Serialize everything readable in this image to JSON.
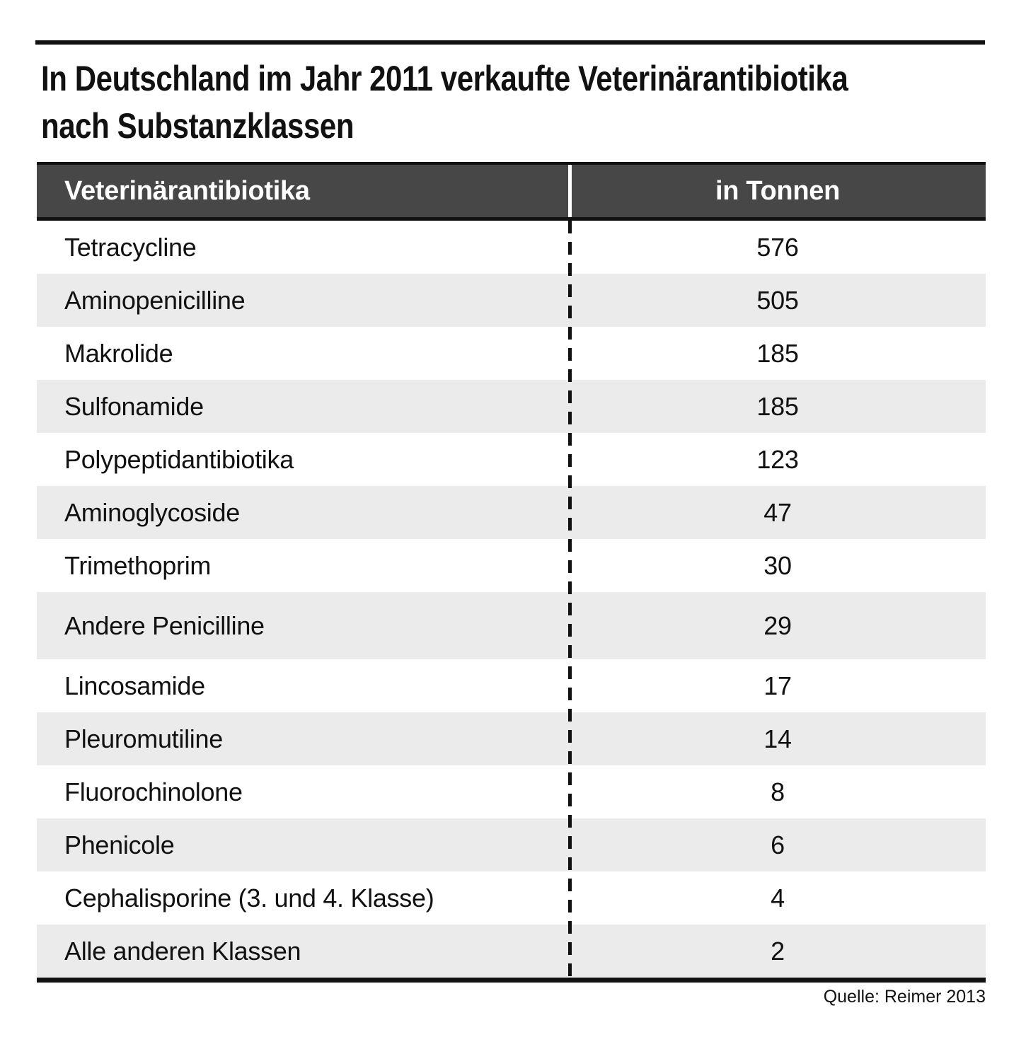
{
  "title": {
    "line1": "In Deutschland im Jahr 2011 verkaufte Veterinärantibiotika",
    "line2": "nach Substanzklassen"
  },
  "table": {
    "header": {
      "label_col": "Veterinärantibiotika",
      "value_col": "in Tonnen"
    },
    "rows": [
      {
        "label": "Tetracycline",
        "value": "576"
      },
      {
        "label": "Aminopenicilline",
        "value": "505"
      },
      {
        "label": "Makrolide",
        "value": "185"
      },
      {
        "label": "Sulfonamide",
        "value": "185"
      },
      {
        "label": "Polypeptidantibiotika",
        "value": "123"
      },
      {
        "label": "Aminoglycoside",
        "value": "47"
      },
      {
        "label": "Trimethoprim",
        "value": "30"
      },
      {
        "label": "Andere Penicilline",
        "value": "29"
      },
      {
        "label": "Lincosamide",
        "value": "17"
      },
      {
        "label": "Pleuromutiline",
        "value": "14"
      },
      {
        "label": "Fluorochinolone",
        "value": "8"
      },
      {
        "label": "Phenicole",
        "value": "6"
      },
      {
        "label": "Cephalisporine (3. und 4. Klasse)",
        "value": "4"
      },
      {
        "label": "Alle anderen Klassen",
        "value": "2"
      }
    ]
  },
  "source": "Quelle: Reimer 2013",
  "colors": {
    "header_bg": "#474747",
    "row_alt_bg": "#ebebeb",
    "rule": "#111111",
    "header_text": "#ffffff"
  },
  "chart_data": {
    "type": "table",
    "title": "In Deutschland im Jahr 2011 verkaufte Veterinärantibiotika nach Substanzklassen",
    "columns": [
      "Veterinärantibiotika",
      "in Tonnen"
    ],
    "categories": [
      "Tetracycline",
      "Aminopenicilline",
      "Makrolide",
      "Sulfonamide",
      "Polypeptidantibiotika",
      "Aminoglycoside",
      "Trimethoprim",
      "Andere Penicilline",
      "Lincosamide",
      "Pleuromutiline",
      "Fluorochinolone",
      "Phenicole",
      "Cephalisporine (3. und 4. Klasse)",
      "Alle anderen Klassen"
    ],
    "values": [
      576,
      505,
      185,
      185,
      123,
      47,
      30,
      29,
      17,
      14,
      8,
      6,
      4,
      2
    ],
    "unit": "Tonnen",
    "source": "Quelle: Reimer 2013"
  }
}
